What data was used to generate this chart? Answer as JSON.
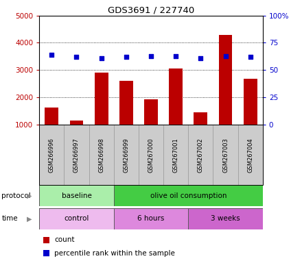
{
  "title": "GDS3691 / 227740",
  "samples": [
    "GSM266996",
    "GSM266997",
    "GSM266998",
    "GSM266999",
    "GSM267000",
    "GSM267001",
    "GSM267002",
    "GSM267003",
    "GSM267004"
  ],
  "counts": [
    1620,
    1160,
    2900,
    2600,
    1920,
    3050,
    1450,
    4280,
    2680
  ],
  "percentile_ranks": [
    64,
    62,
    61,
    62,
    63,
    63,
    61,
    63,
    62
  ],
  "ylim_left": [
    1000,
    5000
  ],
  "ylim_right": [
    0,
    100
  ],
  "yticks_left": [
    1000,
    2000,
    3000,
    4000,
    5000
  ],
  "yticks_right": [
    0,
    25,
    50,
    75,
    100
  ],
  "bar_color": "#bb0000",
  "dot_color": "#0000cc",
  "protocol_groups": [
    {
      "text": "baseline",
      "start": 0,
      "end": 3,
      "color": "#aaeeaa"
    },
    {
      "text": "olive oil consumption",
      "start": 3,
      "end": 9,
      "color": "#44cc44"
    }
  ],
  "time_groups": [
    {
      "text": "control",
      "start": 0,
      "end": 3,
      "color": "#eebbee"
    },
    {
      "text": "6 hours",
      "start": 3,
      "end": 6,
      "color": "#dd88dd"
    },
    {
      "text": "3 weeks",
      "start": 6,
      "end": 9,
      "color": "#cc66cc"
    }
  ],
  "sample_cell_color": "#cccccc",
  "sample_cell_edge": "#999999",
  "legend_count": "count",
  "legend_pct": "percentile rank within the sample"
}
